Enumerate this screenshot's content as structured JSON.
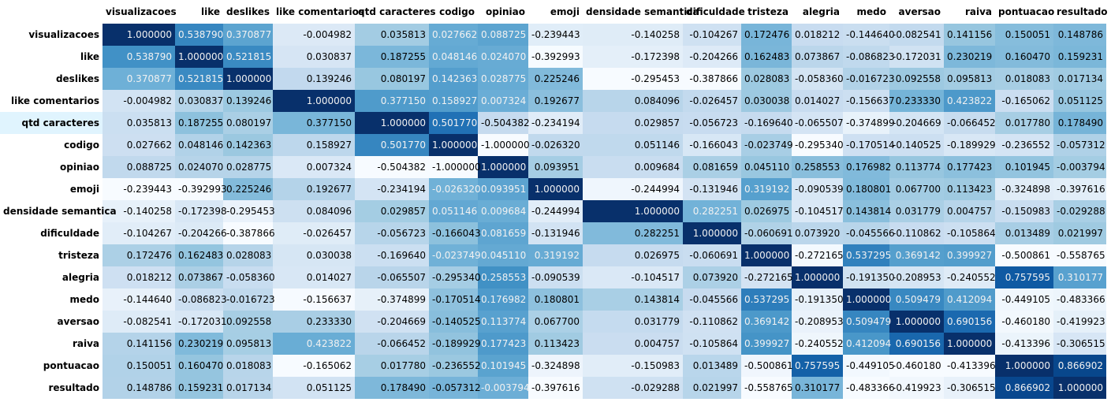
{
  "table": {
    "columns": [
      "visualizacoes",
      "like",
      "deslikes",
      "like comentarios",
      "qtd caracteres",
      "codigo",
      "opiniao",
      "emoji",
      "densidade semantica",
      "dificuldade",
      "tristeza",
      "alegria",
      "medo",
      "aversao",
      "raiva",
      "pontuacao",
      "resultado"
    ],
    "rows": [
      {
        "label": "visualizacoes",
        "values": [
          "1.000000",
          "0.538790",
          "0.370877",
          "-0.004982",
          "0.035813",
          "0.027662",
          "0.088725",
          "-0.239443",
          "-0.140258",
          "-0.104267",
          "0.172476",
          "0.018212",
          "-0.144640",
          "-0.082541",
          "0.141156",
          "0.150051",
          "0.148786"
        ]
      },
      {
        "label": "like",
        "values": [
          "0.538790",
          "1.000000",
          "0.521815",
          "0.030837",
          "0.187255",
          "0.048146",
          "0.024070",
          "-0.392993",
          "-0.172398",
          "-0.204266",
          "0.162483",
          "0.073867",
          "-0.086823",
          "-0.172031",
          "0.230219",
          "0.160470",
          "0.159231"
        ]
      },
      {
        "label": "deslikes",
        "values": [
          "0.370877",
          "0.521815",
          "1.000000",
          "0.139246",
          "0.080197",
          "0.142363",
          "0.028775",
          "0.225246",
          "-0.295453",
          "-0.387866",
          "0.028083",
          "-0.058360",
          "-0.016723",
          "0.092558",
          "0.095813",
          "0.018083",
          "0.017134"
        ]
      },
      {
        "label": "like comentarios",
        "values": [
          "-0.004982",
          "0.030837",
          "0.139246",
          "1.000000",
          "0.377150",
          "0.158927",
          "0.007324",
          "0.192677",
          "0.084096",
          "-0.026457",
          "0.030038",
          "0.014027",
          "-0.156637",
          "0.233330",
          "0.423822",
          "-0.165062",
          "0.051125"
        ]
      },
      {
        "label": "qtd caracteres",
        "values": [
          "0.035813",
          "0.187255",
          "0.080197",
          "0.377150",
          "1.000000",
          "0.501770",
          "-0.504382",
          "-0.234194",
          "0.029857",
          "-0.056723",
          "-0.169640",
          "-0.065507",
          "-0.374899",
          "-0.204669",
          "-0.066452",
          "0.017780",
          "0.178490"
        ]
      },
      {
        "label": "codigo",
        "values": [
          "0.027662",
          "0.048146",
          "0.142363",
          "0.158927",
          "0.501770",
          "1.000000",
          "-1.000000",
          "-0.026320",
          "0.051146",
          "-0.166043",
          "-0.023749",
          "-0.295340",
          "-0.170514",
          "-0.140525",
          "-0.189929",
          "-0.236552",
          "-0.057312"
        ]
      },
      {
        "label": "opiniao",
        "values": [
          "0.088725",
          "0.024070",
          "0.028775",
          "0.007324",
          "-0.504382",
          "-1.000000",
          "1.000000",
          "0.093951",
          "0.009684",
          "0.081659",
          "0.045110",
          "0.258553",
          "0.176982",
          "0.113774",
          "0.177423",
          "0.101945",
          "-0.003794"
        ]
      },
      {
        "label": "emoji",
        "values": [
          "-0.239443",
          "-0.392993",
          "0.225246",
          "0.192677",
          "-0.234194",
          "-0.026320",
          "0.093951",
          "1.000000",
          "-0.244994",
          "-0.131946",
          "0.319192",
          "-0.090539",
          "0.180801",
          "0.067700",
          "0.113423",
          "-0.324898",
          "-0.397616"
        ]
      },
      {
        "label": "densidade semantica",
        "values": [
          "-0.140258",
          "-0.172398",
          "-0.295453",
          "0.084096",
          "0.029857",
          "0.051146",
          "0.009684",
          "-0.244994",
          "1.000000",
          "0.282251",
          "0.026975",
          "-0.104517",
          "0.143814",
          "0.031779",
          "0.004757",
          "-0.150983",
          "-0.029288"
        ]
      },
      {
        "label": "dificuldade",
        "values": [
          "-0.104267",
          "-0.204266",
          "-0.387866",
          "-0.026457",
          "-0.056723",
          "-0.166043",
          "0.081659",
          "-0.131946",
          "0.282251",
          "1.000000",
          "-0.060691",
          "0.073920",
          "-0.045566",
          "-0.110862",
          "-0.105864",
          "0.013489",
          "0.021997"
        ]
      },
      {
        "label": "tristeza",
        "values": [
          "0.172476",
          "0.162483",
          "0.028083",
          "0.030038",
          "-0.169640",
          "-0.023749",
          "0.045110",
          "0.319192",
          "0.026975",
          "-0.060691",
          "1.000000",
          "-0.272165",
          "0.537295",
          "0.369142",
          "0.399927",
          "-0.500861",
          "-0.558765"
        ]
      },
      {
        "label": "alegria",
        "values": [
          "0.018212",
          "0.073867",
          "-0.058360",
          "0.014027",
          "-0.065507",
          "-0.295340",
          "0.258553",
          "-0.090539",
          "-0.104517",
          "0.073920",
          "-0.272165",
          "1.000000",
          "-0.191350",
          "-0.208953",
          "-0.240552",
          "0.757595",
          "0.310177"
        ]
      },
      {
        "label": "medo",
        "values": [
          "-0.144640",
          "-0.086823",
          "-0.016723",
          "-0.156637",
          "-0.374899",
          "-0.170514",
          "0.176982",
          "0.180801",
          "0.143814",
          "-0.045566",
          "0.537295",
          "-0.191350",
          "1.000000",
          "0.509479",
          "0.412094",
          "-0.449105",
          "-0.483366"
        ]
      },
      {
        "label": "aversao",
        "values": [
          "-0.082541",
          "-0.172031",
          "0.092558",
          "0.233330",
          "-0.204669",
          "-0.140525",
          "0.113774",
          "0.067700",
          "0.031779",
          "-0.110862",
          "0.369142",
          "-0.208953",
          "0.509479",
          "1.000000",
          "0.690156",
          "-0.460180",
          "-0.419923"
        ]
      },
      {
        "label": "raiva",
        "values": [
          "0.141156",
          "0.230219",
          "0.095813",
          "0.423822",
          "-0.066452",
          "-0.189929",
          "0.177423",
          "0.113423",
          "0.004757",
          "-0.105864",
          "0.399927",
          "-0.240552",
          "0.412094",
          "0.690156",
          "1.000000",
          "-0.413396",
          "-0.306515"
        ]
      },
      {
        "label": "pontuacao",
        "values": [
          "0.150051",
          "0.160470",
          "0.018083",
          "-0.165062",
          "0.017780",
          "-0.236552",
          "0.101945",
          "-0.324898",
          "-0.150983",
          "0.013489",
          "-0.500861",
          "0.757595",
          "-0.449105",
          "-0.460180",
          "-0.413396",
          "1.000000",
          "0.866902"
        ]
      },
      {
        "label": "resultado",
        "values": [
          "0.148786",
          "0.159231",
          "0.017134",
          "0.051125",
          "0.178490",
          "-0.057312",
          "-0.003794",
          "-0.397616",
          "-0.029288",
          "0.021997",
          "-0.558765",
          "0.310177",
          "-0.483366",
          "-0.419923",
          "-0.306515",
          "0.866902",
          "1.000000"
        ]
      }
    ]
  }
}
